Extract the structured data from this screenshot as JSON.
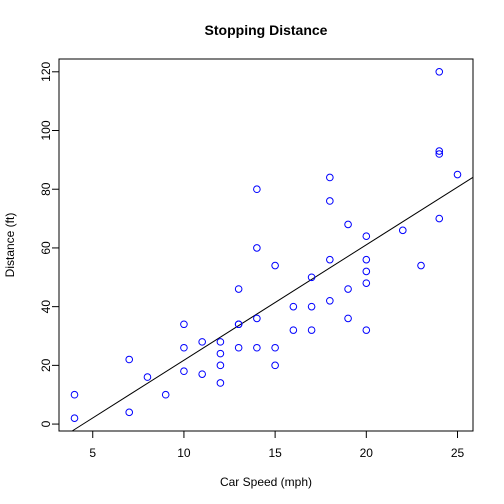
{
  "chart_data": {
    "type": "scatter",
    "title": "Stopping Distance",
    "xlabel": "Car Speed (mph)",
    "ylabel": "Distance (ft)",
    "xlim": [
      3.15,
      25.85
    ],
    "ylim": [
      -2.36,
      124.36
    ],
    "x_ticks": [
      5,
      10,
      15,
      20,
      25
    ],
    "y_ticks": [
      0,
      20,
      40,
      60,
      80,
      100,
      120
    ],
    "grid": false,
    "legend": "none",
    "point_color": "#0000ff",
    "line_color": "#000000",
    "points": [
      [
        4,
        2
      ],
      [
        4,
        10
      ],
      [
        7,
        4
      ],
      [
        7,
        22
      ],
      [
        8,
        16
      ],
      [
        9,
        10
      ],
      [
        10,
        18
      ],
      [
        10,
        26
      ],
      [
        10,
        34
      ],
      [
        11,
        17
      ],
      [
        11,
        28
      ],
      [
        12,
        14
      ],
      [
        12,
        20
      ],
      [
        12,
        24
      ],
      [
        12,
        28
      ],
      [
        13,
        26
      ],
      [
        13,
        34
      ],
      [
        13,
        34
      ],
      [
        13,
        46
      ],
      [
        14,
        26
      ],
      [
        14,
        36
      ],
      [
        14,
        60
      ],
      [
        14,
        80
      ],
      [
        15,
        20
      ],
      [
        15,
        26
      ],
      [
        15,
        54
      ],
      [
        16,
        32
      ],
      [
        16,
        40
      ],
      [
        17,
        32
      ],
      [
        17,
        40
      ],
      [
        17,
        50
      ],
      [
        18,
        42
      ],
      [
        18,
        56
      ],
      [
        18,
        76
      ],
      [
        18,
        84
      ],
      [
        19,
        36
      ],
      [
        19,
        46
      ],
      [
        19,
        68
      ],
      [
        20,
        32
      ],
      [
        20,
        48
      ],
      [
        20,
        52
      ],
      [
        20,
        56
      ],
      [
        20,
        64
      ],
      [
        22,
        66
      ],
      [
        23,
        54
      ],
      [
        24,
        70
      ],
      [
        24,
        92
      ],
      [
        24,
        93
      ],
      [
        24,
        120
      ],
      [
        25,
        85
      ]
    ],
    "regression_line": {
      "intercept": -17.5791,
      "slope": 3.9324
    }
  }
}
